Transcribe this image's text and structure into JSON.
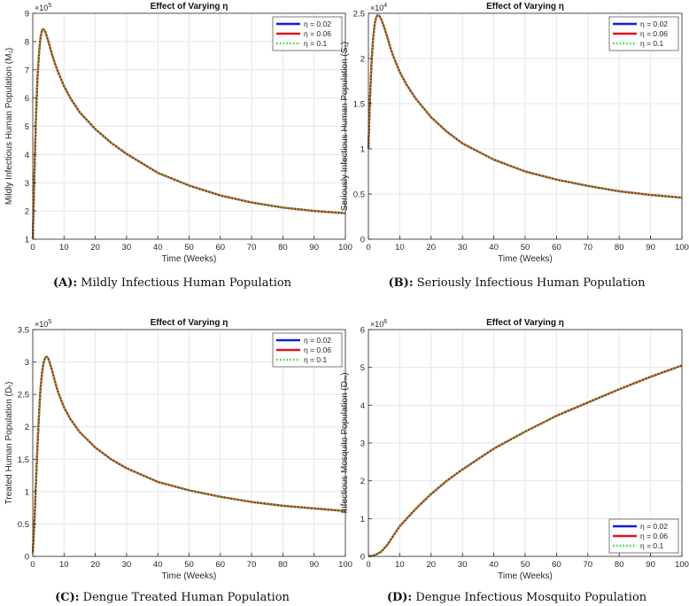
{
  "colors": {
    "series1": "#0a1fd6",
    "series2": "#e0141e",
    "series3": "#33e033",
    "grid": "#e6e6e6",
    "axis": "#262626"
  },
  "captions": [
    {
      "label": "(A):",
      "text": "Mildly Infectious Human Population"
    },
    {
      "label": "(B):",
      "text": "Seriously Infectious Human Population"
    },
    {
      "label": "(C):",
      "text": "Dengue Treated Human Population"
    },
    {
      "label": "(D):",
      "text": "Dengue Infectious Mosquito Population"
    }
  ],
  "chart_data": [
    {
      "type": "line",
      "title": "Effect of Varying η",
      "xlabel": "Time (Weeks)",
      "ylabel": "Mildly Infectious Human Population (M₁)",
      "xlim": [
        0,
        100
      ],
      "ylim": [
        1,
        9
      ],
      "yticks": [
        1,
        2,
        3,
        4,
        5,
        6,
        7,
        8,
        9
      ],
      "xticks": [
        0,
        10,
        20,
        30,
        40,
        50,
        60,
        70,
        80,
        90,
        100
      ],
      "exponent": "×10",
      "exponent_power": "5",
      "legend_position": "top-right",
      "grid": true,
      "x": [
        0,
        0.5,
        1,
        1.5,
        2,
        2.5,
        3,
        3.5,
        4,
        5,
        6,
        7,
        8,
        10,
        12,
        15,
        20,
        25,
        30,
        40,
        50,
        60,
        70,
        80,
        90,
        100
      ],
      "series": [
        {
          "name": "η = 0.02",
          "style": "solid",
          "values": [
            1.0,
            3.2,
            5.2,
            6.7,
            7.6,
            8.15,
            8.42,
            8.43,
            8.35,
            8.0,
            7.6,
            7.25,
            6.95,
            6.42,
            6.0,
            5.5,
            4.9,
            4.42,
            4.02,
            3.35,
            2.9,
            2.55,
            2.3,
            2.12,
            2.0,
            1.92
          ]
        },
        {
          "name": "η = 0.06",
          "style": "solid",
          "values": [
            1.0,
            3.2,
            5.2,
            6.7,
            7.6,
            8.15,
            8.42,
            8.43,
            8.35,
            8.0,
            7.6,
            7.25,
            6.95,
            6.42,
            6.0,
            5.5,
            4.9,
            4.42,
            4.02,
            3.35,
            2.9,
            2.55,
            2.3,
            2.12,
            2.0,
            1.92
          ]
        },
        {
          "name": "η = 0.1",
          "style": "dotted",
          "values": [
            1.0,
            3.2,
            5.2,
            6.7,
            7.6,
            8.15,
            8.42,
            8.43,
            8.35,
            8.0,
            7.6,
            7.25,
            6.95,
            6.42,
            6.0,
            5.5,
            4.9,
            4.42,
            4.02,
            3.35,
            2.9,
            2.55,
            2.3,
            2.12,
            2.0,
            1.92
          ]
        }
      ]
    },
    {
      "type": "line",
      "title": "Effect of Varying η",
      "xlabel": "Time (Weeks)",
      "ylabel": "Seriously Infectious Human Population (S₁)",
      "xlim": [
        0,
        100
      ],
      "ylim": [
        0,
        2.5
      ],
      "yticks": [
        0,
        0.5,
        1,
        1.5,
        2,
        2.5
      ],
      "xticks": [
        0,
        10,
        20,
        30,
        40,
        50,
        60,
        70,
        80,
        90,
        100
      ],
      "exponent": "×10",
      "exponent_power": "4",
      "legend_position": "top-right",
      "grid": true,
      "x": [
        0,
        0.5,
        1,
        1.5,
        2,
        2.5,
        3,
        3.5,
        4,
        5,
        6,
        7,
        8,
        10,
        12,
        15,
        20,
        25,
        30,
        40,
        50,
        60,
        70,
        80,
        90,
        100
      ],
      "series": [
        {
          "name": "η = 0.02",
          "style": "solid",
          "values": [
            1.0,
            1.55,
            1.95,
            2.22,
            2.38,
            2.46,
            2.48,
            2.47,
            2.44,
            2.35,
            2.24,
            2.12,
            2.02,
            1.85,
            1.72,
            1.56,
            1.35,
            1.19,
            1.06,
            0.88,
            0.75,
            0.66,
            0.59,
            0.53,
            0.49,
            0.46
          ]
        },
        {
          "name": "η = 0.06",
          "style": "solid",
          "values": [
            1.0,
            1.55,
            1.95,
            2.22,
            2.38,
            2.46,
            2.48,
            2.47,
            2.44,
            2.35,
            2.24,
            2.12,
            2.02,
            1.85,
            1.72,
            1.56,
            1.35,
            1.19,
            1.06,
            0.88,
            0.75,
            0.66,
            0.59,
            0.53,
            0.49,
            0.46
          ]
        },
        {
          "name": "η = 0.1",
          "style": "dotted",
          "values": [
            1.0,
            1.55,
            1.95,
            2.22,
            2.38,
            2.46,
            2.48,
            2.47,
            2.44,
            2.35,
            2.24,
            2.12,
            2.02,
            1.85,
            1.72,
            1.56,
            1.35,
            1.19,
            1.06,
            0.88,
            0.75,
            0.66,
            0.59,
            0.53,
            0.49,
            0.46
          ]
        }
      ]
    },
    {
      "type": "line",
      "title": "Effect of Varying η",
      "xlabel": "Time (Weeks)",
      "ylabel": "Treated Human Population (Dₜ)",
      "xlim": [
        0,
        100
      ],
      "ylim": [
        0,
        3.5
      ],
      "yticks": [
        0,
        0.5,
        1,
        1.5,
        2,
        2.5,
        3,
        3.5
      ],
      "xticks": [
        0,
        10,
        20,
        30,
        40,
        50,
        60,
        70,
        80,
        90,
        100
      ],
      "exponent": "×10",
      "exponent_power": "5",
      "legend_position": "top-right",
      "grid": true,
      "x": [
        0,
        0.5,
        1,
        1.5,
        2,
        2.5,
        3,
        3.5,
        4,
        4.5,
        5,
        6,
        7,
        8,
        10,
        12,
        15,
        20,
        25,
        30,
        40,
        50,
        60,
        70,
        80,
        90,
        100
      ],
      "series": [
        {
          "name": "η = 0.02",
          "style": "solid",
          "values": [
            0.05,
            0.5,
            1.1,
            1.7,
            2.2,
            2.6,
            2.85,
            3.0,
            3.07,
            3.08,
            3.05,
            2.9,
            2.72,
            2.55,
            2.3,
            2.12,
            1.92,
            1.68,
            1.5,
            1.36,
            1.15,
            1.02,
            0.92,
            0.84,
            0.78,
            0.74,
            0.7
          ]
        },
        {
          "name": "η = 0.06",
          "style": "solid",
          "values": [
            0.05,
            0.5,
            1.1,
            1.7,
            2.2,
            2.6,
            2.85,
            3.0,
            3.07,
            3.08,
            3.05,
            2.9,
            2.72,
            2.55,
            2.3,
            2.12,
            1.92,
            1.68,
            1.5,
            1.36,
            1.15,
            1.02,
            0.92,
            0.84,
            0.78,
            0.74,
            0.7
          ]
        },
        {
          "name": "η = 0.1",
          "style": "dotted",
          "values": [
            0.05,
            0.5,
            1.1,
            1.7,
            2.2,
            2.6,
            2.85,
            3.0,
            3.07,
            3.08,
            3.05,
            2.9,
            2.72,
            2.55,
            2.3,
            2.12,
            1.92,
            1.68,
            1.5,
            1.36,
            1.15,
            1.02,
            0.92,
            0.84,
            0.78,
            0.74,
            0.7
          ]
        }
      ]
    },
    {
      "type": "line",
      "title": "Effect of Varying η",
      "xlabel": "Time (Weeks)",
      "ylabel": "Infectious Mosquito Population (Dₘ)",
      "xlim": [
        0,
        100
      ],
      "ylim": [
        0,
        6
      ],
      "yticks": [
        0,
        1,
        2,
        3,
        4,
        5,
        6
      ],
      "xticks": [
        0,
        10,
        20,
        30,
        40,
        50,
        60,
        70,
        80,
        90,
        100
      ],
      "exponent": "×10",
      "exponent_power": "6",
      "legend_position": "bottom-right",
      "grid": true,
      "x": [
        0,
        2,
        4,
        6,
        8,
        10,
        15,
        20,
        25,
        30,
        40,
        50,
        60,
        70,
        80,
        90,
        100
      ],
      "series": [
        {
          "name": "η = 0.02",
          "style": "solid",
          "values": [
            0.0,
            0.03,
            0.12,
            0.3,
            0.55,
            0.8,
            1.25,
            1.65,
            2.0,
            2.3,
            2.85,
            3.3,
            3.72,
            4.07,
            4.42,
            4.75,
            5.05
          ]
        },
        {
          "name": "η = 0.06",
          "style": "solid",
          "values": [
            0.0,
            0.03,
            0.12,
            0.3,
            0.55,
            0.8,
            1.25,
            1.65,
            2.0,
            2.3,
            2.85,
            3.3,
            3.72,
            4.07,
            4.42,
            4.75,
            5.05
          ]
        },
        {
          "name": "η = 0.1",
          "style": "dotted",
          "values": [
            0.0,
            0.03,
            0.12,
            0.3,
            0.55,
            0.8,
            1.25,
            1.65,
            2.0,
            2.3,
            2.85,
            3.3,
            3.72,
            4.07,
            4.42,
            4.75,
            5.05
          ]
        }
      ]
    }
  ]
}
